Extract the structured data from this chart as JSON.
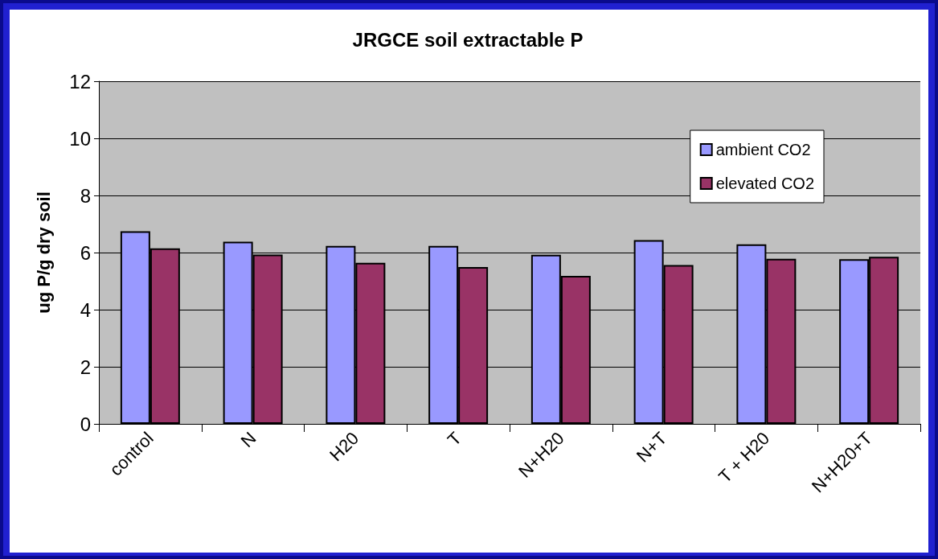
{
  "chart_data": {
    "type": "bar",
    "title": "JRGCE soil extractable P",
    "ylabel": "ug P/g dry soil",
    "categories": [
      "control",
      "N",
      "H20",
      "T",
      "N+H20",
      "N+T",
      "T + H20",
      "N+H20+T"
    ],
    "series": [
      {
        "name": "ambient CO2",
        "color": "#9999ff",
        "values": [
          6.75,
          6.38,
          6.23,
          6.23,
          5.92,
          6.44,
          6.29,
          5.77
        ]
      },
      {
        "name": "elevated CO2",
        "color": "#993366",
        "values": [
          6.15,
          5.93,
          5.64,
          5.49,
          5.18,
          5.56,
          5.78,
          5.85
        ]
      }
    ],
    "ylim": [
      0,
      12
    ],
    "yticks": [
      0,
      2,
      4,
      6,
      8,
      10,
      12
    ],
    "grid": "y",
    "legend": "right"
  }
}
